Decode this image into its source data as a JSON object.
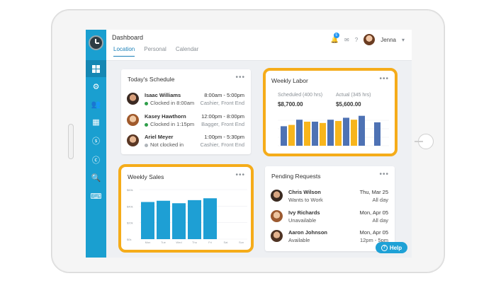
{
  "header": {
    "title": "Dashboard",
    "tabs": [
      {
        "label": "Location",
        "active": true
      },
      {
        "label": "Personal",
        "active": false
      },
      {
        "label": "Calendar",
        "active": false
      }
    ],
    "notification_count": "5",
    "user_name": "Jenna"
  },
  "sidebar": {
    "icons": [
      "logo-clock-icon",
      "dashboard-grid-icon",
      "gear-icon",
      "users-icon",
      "calendar-icon",
      "dollar-icon",
      "currency-icon",
      "search-icon",
      "keyboard-icon"
    ]
  },
  "schedule": {
    "title": "Today's Schedule",
    "rows": [
      {
        "name": "Isaac Williams",
        "time": "8:00am - 5:00pm",
        "status": "Clocked in 8:00am",
        "status_color": "#2e9e4a",
        "role": "Cashier, Front End"
      },
      {
        "name": "Kasey Hawthorn",
        "time": "12:00pm - 8:00pm",
        "status": "Clocked in 1:15pm",
        "status_color": "#2e9e4a",
        "role": "Bagger, Front End"
      },
      {
        "name": "Ariel Meyer",
        "time": "1:00pm - 5:30pm",
        "status": "Not clocked in",
        "status_color": "#b0b5ba",
        "role": "Cashier, Front End"
      }
    ]
  },
  "labor": {
    "title": "Weekly Labor",
    "scheduled_label": "Scheduled (400 hrs)",
    "scheduled_value": "$8,700.00",
    "actual_label": "Actual (345 hrs)",
    "actual_value": "$5,600.00"
  },
  "sales": {
    "title": "Weekly Sales"
  },
  "requests": {
    "title": "Pending Requests",
    "rows": [
      {
        "name": "Chris Wilson",
        "sub": "Wants to Work",
        "date": "Thu, Mar 25",
        "time": "All day"
      },
      {
        "name": "Ivy Richards",
        "sub": "Unavailable",
        "date": "Mon, Apr 05",
        "time": "All day"
      },
      {
        "name": "Aaron Johnson",
        "sub": "Available",
        "date": "Mon, Apr 05",
        "time": "12pm - 5pm"
      }
    ]
  },
  "help_label": "Help",
  "colors": {
    "sidebar": "#1a9fd0",
    "highlight": "#f5ac1a",
    "scheduled_bar": "#4e72b4",
    "actual_bar": "#f8b51c",
    "sales_bar": "#1e9fd4"
  },
  "chart_data": [
    {
      "type": "bar",
      "name": "weekly-labor",
      "series": [
        {
          "name": "Scheduled",
          "values": [
            60,
            80,
            74,
            80,
            86,
            92,
            72
          ]
        },
        {
          "name": "Actual",
          "values": [
            64,
            74,
            70,
            76,
            80,
            0,
            0
          ]
        }
      ],
      "pairs_layout": [
        [
          0,
          1
        ],
        [
          0,
          1
        ],
        [
          0,
          1
        ],
        [
          0,
          1
        ],
        [
          0,
          1
        ],
        [
          0
        ],
        [
          0
        ]
      ],
      "ylim": [
        0,
        100
      ],
      "grid": true
    },
    {
      "type": "bar",
      "name": "weekly-sales",
      "categories": [
        "Mon",
        "Tue",
        "Wed",
        "Thu",
        "Fri",
        "Sat",
        "Sun"
      ],
      "values": [
        60,
        62,
        58,
        63,
        66,
        0,
        0
      ],
      "yticks": [
        "$60k",
        "$40k",
        "$20k",
        "$0k"
      ],
      "ylim": [
        0,
        80
      ],
      "grid": true
    }
  ]
}
